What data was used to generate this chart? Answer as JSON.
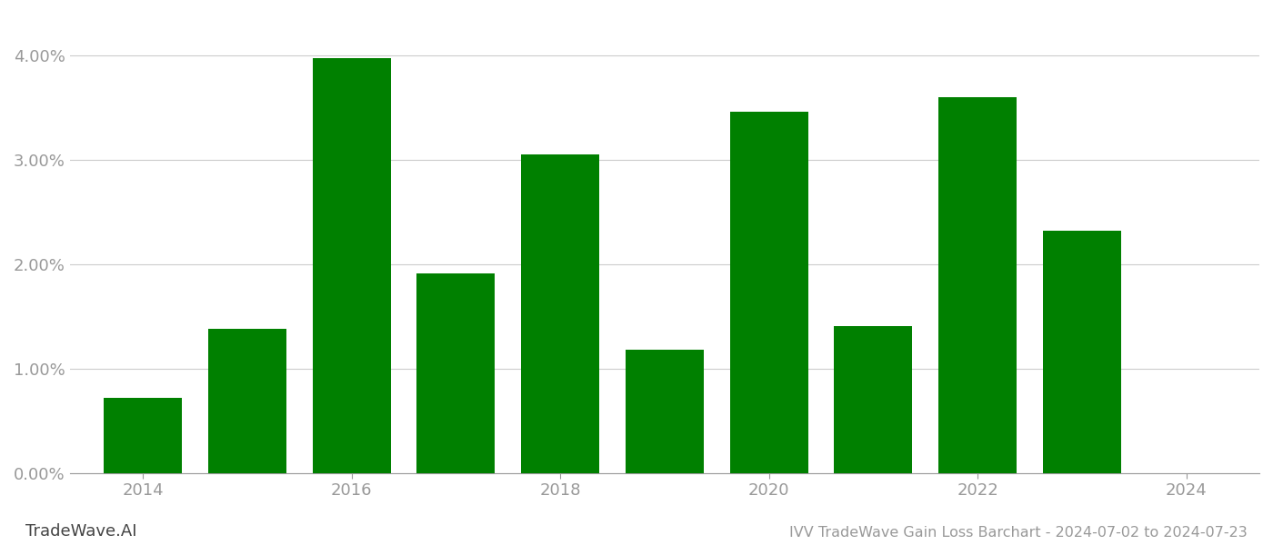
{
  "years": [
    2014,
    2015,
    2016,
    2017,
    2018,
    2019,
    2020,
    2021,
    2022,
    2023
  ],
  "values": [
    0.0072,
    0.0138,
    0.0397,
    0.0191,
    0.0305,
    0.0118,
    0.0346,
    0.0141,
    0.036,
    0.0232
  ],
  "bar_color": "#008000",
  "title": "IVV TradeWave Gain Loss Barchart - 2024-07-02 to 2024-07-23",
  "watermark": "TradeWave.AI",
  "ylim": [
    0,
    0.044
  ],
  "yticks": [
    0.0,
    0.01,
    0.02,
    0.03,
    0.04
  ],
  "xlim": [
    2013.3,
    2024.7
  ],
  "xticks": [
    2014,
    2016,
    2018,
    2020,
    2022,
    2024
  ],
  "background_color": "#ffffff",
  "grid_color": "#cccccc",
  "tick_color": "#999999",
  "title_fontsize": 11.5,
  "watermark_fontsize": 13,
  "bar_width": 0.75
}
